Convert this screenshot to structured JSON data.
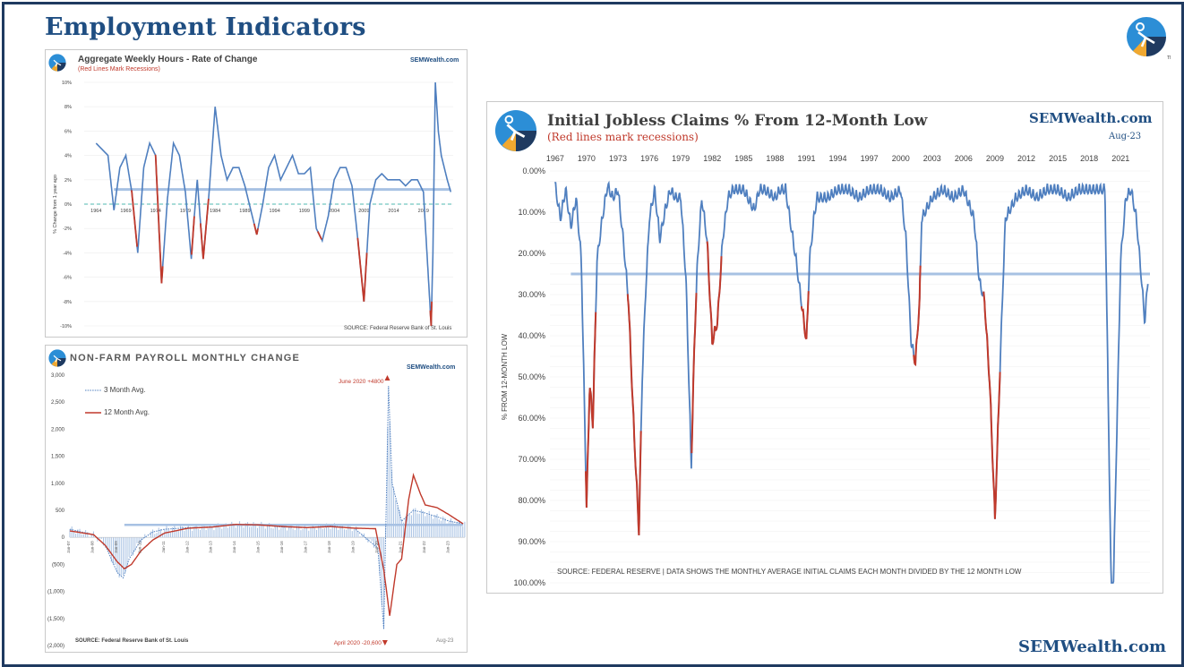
{
  "page": {
    "title": "Employment Indicators",
    "footer_brand": "SEMWealth.com"
  },
  "charts": {
    "weekly_hours": {
      "title": "Aggregate Weekly Hours - Rate of Change",
      "subtitle": "(Red Lines Mark Recessions)",
      "brand": "SEMWealth.com",
      "ylabel": "% Change from 1 year ago",
      "source": "SOURCE:  Federal Reserve Bank of St. Louis"
    },
    "payroll": {
      "title": "NON-FARM PAYROLL MONTHLY CHANGE",
      "brand": "SEMWealth.com",
      "legend_3m": "3 Month Avg.",
      "legend_12m": "12 Month Avg.",
      "annot_high": "June 2020 +4800",
      "annot_low": "April 2020 -20,600",
      "date_label": "Aug-23",
      "source": "SOURCE:  Federal Reserve Bank of St. Louis"
    },
    "jobless": {
      "title": "Initial Jobless Claims % From 12-Month Low",
      "subtitle": "(Red lines mark recessions)",
      "brand": "SEMWealth.com",
      "date_label": "Aug-23",
      "ylabel": "% FROM 12-MONTH LOW",
      "source": "SOURCE: FEDERAL RESERVE  |  DATA SHOWS THE MONTHLY AVERAGE INITIAL CLAIMS EACH MONTH DIVIDED BY THE 12 MONTH LOW"
    }
  },
  "colors": {
    "line_blue": "#4f7fbf",
    "recession_red": "#c0392b",
    "ref_light_blue": "#a7c1e3",
    "zero_dash": "#4fb8b0",
    "title_navy": "#1f4e82"
  },
  "chart_data": [
    {
      "type": "line",
      "title": "Aggregate Weekly Hours - Rate of Change",
      "xlabel": "",
      "ylabel": "% Change from 1 year ago",
      "ylim": [
        -10,
        10
      ],
      "yticks": [
        "10%",
        "8%",
        "6%",
        "4%",
        "2%",
        "0%",
        "-2%",
        "-4%",
        "-6%",
        "-8%",
        "-10%"
      ],
      "xticks": [
        1964,
        1969,
        1974,
        1979,
        1984,
        1989,
        1994,
        1999,
        2004,
        2009,
        2014,
        2019
      ],
      "reference_line": 1.2,
      "series": [
        {
          "x": [
            1964,
            1965,
            1966,
            1967,
            1968,
            1969,
            1970,
            1971,
            1972,
            1973,
            1974,
            1975,
            1976,
            1977,
            1978,
            1979,
            1980,
            1980.5,
            1981,
            1982,
            1983,
            1984,
            1985,
            1986,
            1987,
            1988,
            1989,
            1990,
            1991,
            1992,
            1993,
            1994,
            1995,
            1996,
            1997,
            1998,
            1999,
            2000,
            2001,
            2002,
            2003,
            2004,
            2005,
            2006,
            2007,
            2008,
            2009,
            2010,
            2011,
            2012,
            2013,
            2014,
            2015,
            2016,
            2017,
            2018,
            2019,
            2020.3,
            2020.6,
            2021,
            2021.5,
            2022,
            2023,
            2023.6
          ],
          "y": [
            5,
            4.5,
            4,
            -0.5,
            3,
            4,
            1,
            -4,
            3,
            5,
            4,
            -6.5,
            0.5,
            5,
            4,
            1,
            -4.5,
            -1,
            2,
            -4.5,
            1,
            8,
            4,
            2,
            3,
            3,
            1.5,
            -0.5,
            -2.5,
            0,
            3,
            4,
            2,
            3,
            4,
            2.5,
            2.5,
            3,
            -2,
            -3,
            -1,
            2,
            3,
            3,
            1.5,
            -3,
            -8,
            0,
            2,
            2.5,
            2,
            2,
            2,
            1.5,
            2,
            2,
            1,
            -10,
            -4,
            10,
            6,
            4,
            2,
            1
          ]
        }
      ],
      "recessions": [
        [
          1969.9,
          1970.9
        ],
        [
          1973.9,
          1975.2
        ],
        [
          1980.0,
          1980.5
        ],
        [
          1981.5,
          1982.9
        ],
        [
          1990.5,
          1991.2
        ],
        [
          2001.2,
          2001.9
        ],
        [
          2007.9,
          2009.5
        ],
        [
          2020.1,
          2020.4
        ]
      ]
    },
    {
      "type": "bar",
      "title": "NON-FARM PAYROLL MONTHLY CHANGE",
      "xlabel": "",
      "ylabel": "",
      "ylim": [
        -2000,
        3000
      ],
      "yticks": [
        "3,000",
        "2,500",
        "2,000",
        "1,500",
        "1,000",
        "500",
        "0",
        "(500)",
        "(1,000)",
        "(1,500)",
        "(2,000)"
      ],
      "xlim": [
        2007.0,
        2023.67
      ],
      "categories_note": "monthly bars Jan-07 through Aug-23",
      "reference_line": 230,
      "series": [
        {
          "name": "3 Month Avg.",
          "x": [
            2007,
            2008,
            2008.5,
            2009,
            2009.25,
            2009.5,
            2010,
            2010.5,
            2011,
            2012,
            2013,
            2014,
            2015,
            2016,
            2017,
            2018,
            2019,
            2020,
            2020.25,
            2020.45,
            2020.6,
            2021,
            2021.5,
            2022,
            2022.5,
            2023,
            2023.6
          ],
          "y": [
            150,
            50,
            -150,
            -650,
            -750,
            -400,
            -50,
            100,
            150,
            180,
            190,
            240,
            230,
            190,
            180,
            210,
            170,
            -200,
            -1700,
            2800,
            1000,
            300,
            500,
            450,
            380,
            300,
            250
          ]
        },
        {
          "name": "12 Month Avg.",
          "x": [
            2007,
            2008,
            2008.5,
            2009,
            2009.3,
            2009.6,
            2010,
            2010.5,
            2011,
            2012,
            2013,
            2014,
            2015,
            2016,
            2017,
            2018,
            2019,
            2019.9,
            2020.25,
            2020.5,
            2020.8,
            2021,
            2021.3,
            2021.5,
            2021.8,
            2022,
            2022.5,
            2023,
            2023.6
          ],
          "y": [
            120,
            50,
            -150,
            -450,
            -580,
            -500,
            -250,
            -50,
            80,
            170,
            190,
            240,
            230,
            200,
            180,
            200,
            170,
            160,
            -600,
            -1450,
            -500,
            -400,
            700,
            1150,
            800,
            600,
            550,
            420,
            250
          ]
        }
      ],
      "annotations": [
        {
          "text": "June 2020 +4800",
          "x": 2020.4,
          "y": 3000
        },
        {
          "text": "April 2020 -20,600",
          "x": 2020.3,
          "y": -2000
        }
      ]
    },
    {
      "type": "line",
      "title": "Initial Jobless Claims % From 12-Month Low",
      "xlabel": "",
      "ylabel": "% FROM 12-MONTH LOW",
      "ylim": [
        0,
        100
      ],
      "y_inverted": true,
      "yticks": [
        "0.00%",
        "10.00%",
        "20.00%",
        "30.00%",
        "40.00%",
        "50.00%",
        "60.00%",
        "70.00%",
        "80.00%",
        "90.00%",
        "100.00%"
      ],
      "xticks": [
        1967,
        1970,
        1973,
        1976,
        1979,
        1982,
        1985,
        1988,
        1991,
        1994,
        1997,
        2000,
        2003,
        2006,
        2009,
        2012,
        2015,
        2018,
        2021
      ],
      "reference_line": 25,
      "series": [
        {
          "x": [
            1967,
            1967.5,
            1968,
            1968.5,
            1969,
            1969.5,
            1970,
            1970.3,
            1970.6,
            1971,
            1971.5,
            1972,
            1972.5,
            1973,
            1973.5,
            1974,
            1974.5,
            1975,
            1975.3,
            1975.6,
            1976,
            1976.5,
            1977,
            1977.5,
            1978,
            1978.5,
            1979,
            1979.5,
            1980,
            1980.3,
            1980.6,
            1981,
            1981.5,
            1982,
            1982.5,
            1983,
            1983.5,
            1984,
            1985,
            1986,
            1986.5,
            1987,
            1988,
            1988.5,
            1989,
            1990,
            1990.5,
            1991,
            1991.3,
            1991.7,
            1992,
            1993,
            1994,
            1995,
            1996,
            1997,
            1998,
            1999,
            2000,
            2000.5,
            2001,
            2001.4,
            2001.8,
            2002,
            2003,
            2004,
            2005,
            2006,
            2007,
            2007.5,
            2008,
            2008.5,
            2009,
            2009.3,
            2009.7,
            2010,
            2011,
            2012,
            2013,
            2014,
            2015,
            2016,
            2017,
            2018,
            2019,
            2019.5,
            2020.1,
            2020.3,
            2021,
            2021.5,
            2022,
            2022.5,
            2023,
            2023.3,
            2023.6
          ],
          "y": [
            2,
            10,
            3,
            12,
            5,
            20,
            80,
            50,
            60,
            20,
            10,
            2,
            5,
            3,
            15,
            30,
            60,
            86,
            50,
            30,
            10,
            3,
            15,
            8,
            3,
            5,
            5,
            25,
            70,
            40,
            20,
            5,
            15,
            40,
            35,
            15,
            5,
            3,
            3,
            8,
            3,
            3,
            5,
            3,
            3,
            20,
            30,
            40,
            20,
            10,
            5,
            5,
            3,
            3,
            5,
            3,
            3,
            5,
            3,
            15,
            40,
            45,
            30,
            10,
            5,
            3,
            5,
            3,
            10,
            25,
            30,
            50,
            83,
            60,
            30,
            10,
            5,
            3,
            5,
            3,
            3,
            5,
            3,
            3,
            3,
            3,
            100,
            100,
            20,
            5,
            3,
            10,
            25,
            35,
            25
          ]
        }
      ],
      "recessions": [
        [
          1969.9,
          1970.9
        ],
        [
          1973.9,
          1975.2
        ],
        [
          1980.0,
          1980.5
        ],
        [
          1981.5,
          1982.9
        ],
        [
          1990.5,
          1991.2
        ],
        [
          2001.2,
          2001.9
        ],
        [
          2007.9,
          2009.5
        ]
      ]
    }
  ]
}
